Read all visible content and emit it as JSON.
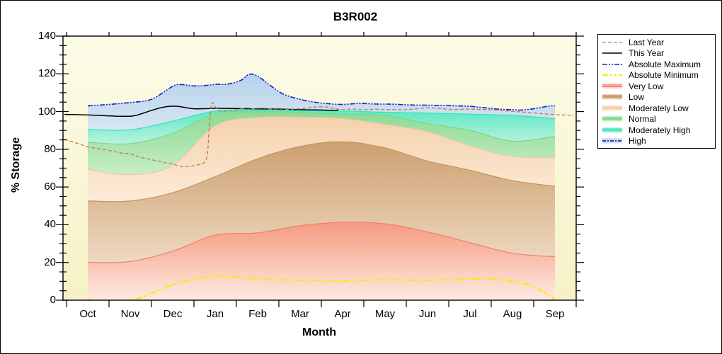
{
  "chart": {
    "title": "B3R002"
  },
  "axes": {
    "x": {
      "title": "Month",
      "months": [
        "Oct",
        "Nov",
        "Dec",
        "Jan",
        "Feb",
        "Mar",
        "Apr",
        "May",
        "Jun",
        "Jul",
        "Aug",
        "Sep"
      ]
    },
    "y": {
      "title": "% Storage",
      "min": 0,
      "max": 140,
      "major_step": 20,
      "minor_step": 5,
      "tick_labels": [
        "0",
        "20",
        "40",
        "60",
        "80",
        "100",
        "120",
        "140"
      ]
    }
  },
  "plot_style": {
    "bg_top": "#fcfce8",
    "bg_bottom": "#f6f2c6",
    "frame_color": "#000000"
  },
  "legend": {
    "entries": [
      {
        "label": "Last Year",
        "type": "line",
        "line": 0
      },
      {
        "label": "This Year",
        "type": "line",
        "line": 1
      },
      {
        "label": "Absolute Maximum",
        "type": "line",
        "line": 2
      },
      {
        "label": "Absolute Minimum",
        "type": "line",
        "line": 3
      },
      {
        "label": "Very Low",
        "type": "fill",
        "band": 0
      },
      {
        "label": "Low",
        "type": "fill",
        "band": 1
      },
      {
        "label": "Moderately Low",
        "type": "fill",
        "band": 2
      },
      {
        "label": "Normal",
        "type": "fill",
        "band": 3
      },
      {
        "label": "Moderately High",
        "type": "fill",
        "band": 4
      },
      {
        "label": "High",
        "type": "fill",
        "band": 5,
        "sample_dash": "5 2 2 2"
      }
    ]
  },
  "chart_data": {
    "type": "area",
    "title": "B3R002",
    "xlabel": "Month",
    "ylabel": "% Storage",
    "ylim": [
      0,
      140
    ],
    "months": [
      "Oct",
      "Nov",
      "Dec",
      "Jan",
      "Feb",
      "Mar",
      "Apr",
      "May",
      "Jun",
      "Jul",
      "Aug",
      "Sep"
    ],
    "bands": [
      {
        "name": "Very Low",
        "from": 0,
        "values": [
          20,
          20.5,
          26,
          34.5,
          35.7,
          39.5,
          41.3,
          40.5,
          36.2,
          30.5,
          24.9,
          23
        ],
        "color_top": "#f59a80",
        "color_bottom": "#feeae2",
        "edge_color": "#ee8165"
      },
      {
        "name": "Low",
        "values": [
          52.6,
          52.6,
          57,
          65.5,
          75,
          81.5,
          84,
          80.7,
          73.8,
          68.9,
          63.4,
          60.4
        ],
        "color_top": "#cda06f",
        "color_bottom": "#eed9c2",
        "edge_color": "#c3945f"
      },
      {
        "name": "Moderately Low",
        "values": [
          69.4,
          66.5,
          71.5,
          92.5,
          96.8,
          97,
          96.2,
          93.1,
          89.3,
          81.8,
          76.2,
          75.6
        ],
        "color_top": "#f5d1ac",
        "color_bottom": "#fcecd9",
        "edge_color": "#f0c9a0"
      },
      {
        "name": "Normal",
        "values": [
          83.7,
          83,
          88.5,
          98.8,
          99.9,
          99.5,
          98.6,
          98,
          93.7,
          90,
          84.3,
          86.8
        ],
        "color_top": "#8cda93",
        "color_bottom": "#c8eec6",
        "edge_color": "#7dd489"
      },
      {
        "name": "Moderately High",
        "values": [
          90.5,
          90.3,
          95,
          100.2,
          100.8,
          100.6,
          100.3,
          99.6,
          99.2,
          98.6,
          98,
          96.2
        ],
        "color_top": "#5ee8c4",
        "color_bottom": "#b9f2de",
        "edge_color": "#2fe5bd"
      },
      {
        "name": "High",
        "top_from_line": 2,
        "values": [
          103,
          104.8,
          113.4,
          114.4,
          118.8,
          106.5,
          103.8,
          104,
          103.4,
          102.8,
          101,
          103.1
        ],
        "color_top": "#b7d2ea",
        "color_bottom": "#d6e6f3",
        "edge_color": null
      }
    ],
    "lines": [
      {
        "name": "Last Year",
        "color": "#bf7c42",
        "width": 1.3,
        "dash": "5 3",
        "points": [
          [
            -0.55,
            85.3
          ],
          [
            -0.2,
            82.8
          ],
          [
            0,
            81.3
          ],
          [
            0.4,
            79.8
          ],
          [
            0.8,
            78
          ],
          [
            1,
            77.6
          ],
          [
            1.2,
            76
          ],
          [
            1.5,
            74.5
          ],
          [
            1.8,
            73
          ],
          [
            2,
            72.2
          ],
          [
            2.2,
            70.8
          ],
          [
            2.4,
            71
          ],
          [
            2.6,
            71.8
          ],
          [
            2.75,
            73.2
          ],
          [
            2.82,
            78
          ],
          [
            2.87,
            95
          ],
          [
            2.92,
            104.5
          ],
          [
            3,
            102.5
          ],
          [
            3.08,
            100.4
          ],
          [
            3.2,
            100.2
          ],
          [
            3.4,
            100.8
          ],
          [
            3.6,
            101.4
          ],
          [
            3.75,
            101.9
          ],
          [
            3.9,
            101.5
          ],
          [
            4.1,
            101.9
          ],
          [
            4.3,
            101.3
          ],
          [
            4.5,
            100.9
          ],
          [
            4.7,
            101.1
          ],
          [
            4.9,
            101.4
          ],
          [
            5.1,
            101.6
          ],
          [
            5.35,
            102.4
          ],
          [
            5.6,
            102.5
          ],
          [
            5.8,
            101.6
          ],
          [
            6,
            101
          ],
          [
            6.2,
            101.3
          ],
          [
            6.5,
            101
          ],
          [
            6.8,
            101.2
          ],
          [
            7,
            101.1
          ],
          [
            7.5,
            101
          ],
          [
            7.8,
            101.6
          ],
          [
            8,
            102
          ],
          [
            8.3,
            101.6
          ],
          [
            8.6,
            101.1
          ],
          [
            9,
            101.3
          ],
          [
            9.3,
            101.1
          ],
          [
            9.6,
            100.9
          ],
          [
            10,
            100.1
          ],
          [
            10.4,
            99.5
          ],
          [
            10.8,
            98.7
          ],
          [
            11.1,
            98.3
          ],
          [
            11.45,
            98
          ]
        ]
      },
      {
        "name": "This Year",
        "color": "#000000",
        "width": 1.5,
        "dash": "",
        "points": [
          [
            -0.55,
            98.5
          ],
          [
            0,
            98.2
          ],
          [
            0.4,
            97.8
          ],
          [
            0.8,
            97.5
          ],
          [
            1.1,
            97.8
          ],
          [
            1.5,
            100.6
          ],
          [
            1.8,
            102.4
          ],
          [
            2.1,
            102.8
          ],
          [
            2.5,
            101.5
          ],
          [
            3,
            101.7
          ],
          [
            3.5,
            101.6
          ],
          [
            4,
            101.4
          ],
          [
            4.5,
            101.3
          ],
          [
            5,
            101
          ],
          [
            5.5,
            100.8
          ],
          [
            5.9,
            100.6
          ]
        ]
      },
      {
        "name": "Absolute Maximum",
        "color": "#1d1dd2",
        "width": 1.6,
        "dash": "7 2 2 2 2 2",
        "points": [
          [
            0,
            103
          ],
          [
            0.5,
            103.8
          ],
          [
            1,
            104.8
          ],
          [
            1.5,
            106.5
          ],
          [
            2,
            113.4
          ],
          [
            2.2,
            114.3
          ],
          [
            2.5,
            113.6
          ],
          [
            2.8,
            113.9
          ],
          [
            3,
            114.4
          ],
          [
            3.3,
            114.6
          ],
          [
            3.6,
            116.5
          ],
          [
            3.8,
            119.7
          ],
          [
            4,
            118.8
          ],
          [
            4.3,
            113.8
          ],
          [
            4.6,
            109.3
          ],
          [
            5,
            106.5
          ],
          [
            5.4,
            104.8
          ],
          [
            5.7,
            104.1
          ],
          [
            6,
            103.8
          ],
          [
            6.4,
            104.3
          ],
          [
            6.8,
            104
          ],
          [
            7.2,
            103.9
          ],
          [
            7.6,
            103.5
          ],
          [
            8,
            103.4
          ],
          [
            8.4,
            103.2
          ],
          [
            8.7,
            103
          ],
          [
            9,
            102.8
          ],
          [
            9.4,
            101.9
          ],
          [
            9.7,
            101.2
          ],
          [
            10,
            101
          ],
          [
            10.2,
            100.8
          ],
          [
            10.5,
            101.5
          ],
          [
            10.8,
            102.7
          ],
          [
            11,
            103.1
          ]
        ]
      },
      {
        "name": "Absolute Minimum",
        "color": "#ffe714",
        "width": 2.6,
        "dash": "8 3 3 3 3 3",
        "points": [
          [
            0,
            0.5
          ],
          [
            0.25,
            -0.8
          ],
          [
            0.6,
            -0.8
          ],
          [
            0.95,
            -0.3
          ],
          [
            1.2,
            1
          ],
          [
            1.6,
            4.5
          ],
          [
            2,
            8.2
          ],
          [
            2.5,
            11.2
          ],
          [
            3,
            12.8
          ],
          [
            3.4,
            12.4
          ],
          [
            3.8,
            11.6
          ],
          [
            4,
            11.2
          ],
          [
            4.5,
            10.8
          ],
          [
            5,
            10.6
          ],
          [
            5.5,
            10.4
          ],
          [
            6,
            10.2
          ],
          [
            6.5,
            10.5
          ],
          [
            7,
            11
          ],
          [
            7.5,
            10.7
          ],
          [
            8,
            10.6
          ],
          [
            8.5,
            10.9
          ],
          [
            9,
            11.2
          ],
          [
            9.4,
            11.5
          ],
          [
            9.7,
            11
          ],
          [
            10,
            9.9
          ],
          [
            10.3,
            8.6
          ],
          [
            10.6,
            6
          ],
          [
            10.9,
            2
          ],
          [
            11,
            0.2
          ]
        ]
      }
    ],
    "line_draw_order": [
      3,
      2,
      1,
      0
    ],
    "layout": {
      "legend_position": "outside-right",
      "grid": false
    }
  }
}
